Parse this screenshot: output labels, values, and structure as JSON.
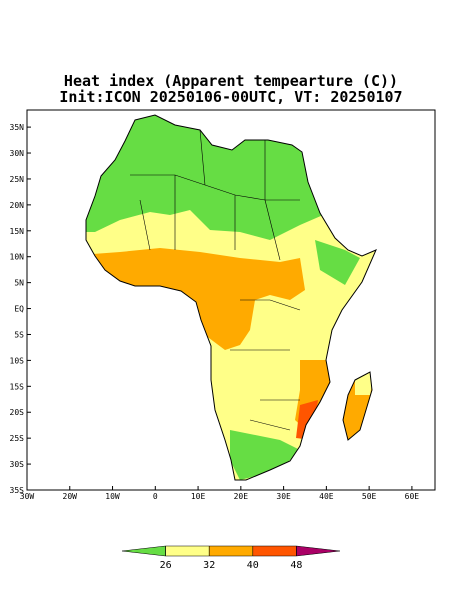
{
  "title": [
    "Heat index (Apparent tempearture (C))",
    "Init:ICON 20250106-00UTC, VT: 20250107"
  ],
  "map": {
    "lon_range": [
      -30,
      65.4
    ],
    "lat_range": [
      -35,
      38.3
    ],
    "lat_ticks": [
      {
        "value": 35,
        "label": "35N"
      },
      {
        "value": 30,
        "label": "30N"
      },
      {
        "value": 25,
        "label": "25N"
      },
      {
        "value": 20,
        "label": "20N"
      },
      {
        "value": 15,
        "label": "15N"
      },
      {
        "value": 10,
        "label": "10N"
      },
      {
        "value": 5,
        "label": "5N"
      },
      {
        "value": 0,
        "label": "EQ"
      },
      {
        "value": -5,
        "label": "5S"
      },
      {
        "value": -10,
        "label": "10S"
      },
      {
        "value": -15,
        "label": "15S"
      },
      {
        "value": -20,
        "label": "20S"
      },
      {
        "value": -25,
        "label": "25S"
      },
      {
        "value": -30,
        "label": "30S"
      },
      {
        "value": -35,
        "label": "35S"
      }
    ],
    "lon_ticks": [
      {
        "value": -30,
        "label": "30W"
      },
      {
        "value": -20,
        "label": "20W"
      },
      {
        "value": -10,
        "label": "10W"
      },
      {
        "value": 0,
        "label": "0"
      },
      {
        "value": 10,
        "label": "10E"
      },
      {
        "value": 20,
        "label": "20E"
      },
      {
        "value": 30,
        "label": "30E"
      },
      {
        "value": 40,
        "label": "40E"
      },
      {
        "value": 50,
        "label": "50E"
      },
      {
        "value": 60,
        "label": "60E"
      }
    ]
  },
  "colorbar": {
    "ticks": [
      26,
      32,
      40,
      48
    ],
    "colors": [
      "#66dd44",
      "#ffff88",
      "#ffaa00",
      "#ff5500",
      "#aa0066"
    ]
  }
}
